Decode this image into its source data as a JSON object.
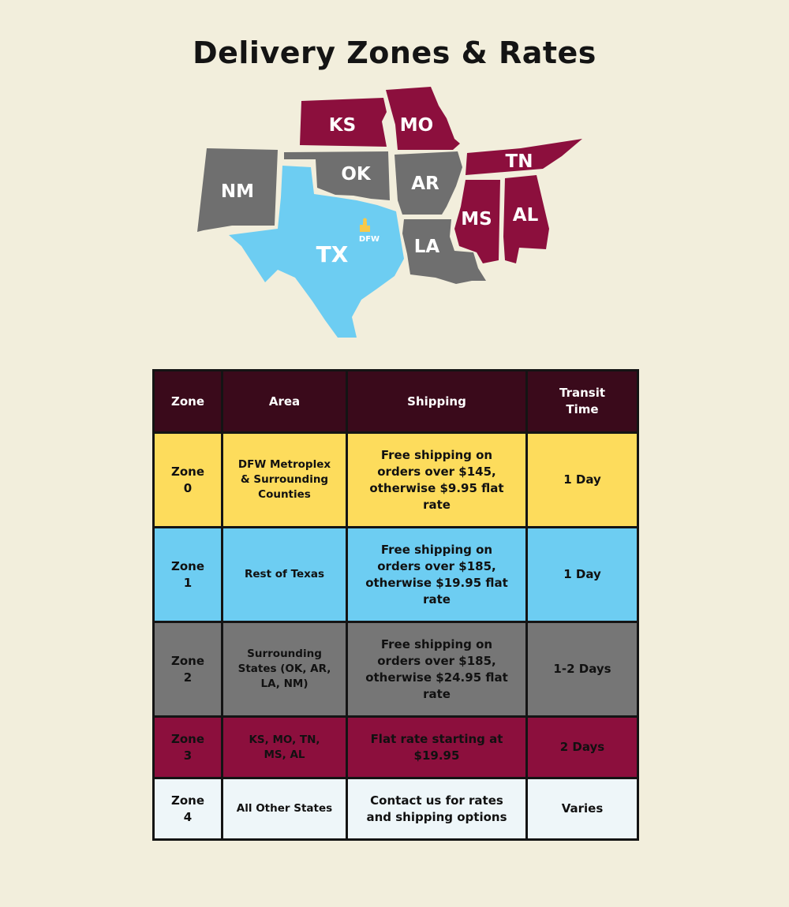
{
  "title": "Delivery Zones & Rates",
  "colors": {
    "background": "#f2eedc",
    "zone0": "#fddc5c",
    "zone1": "#6dcdf2",
    "zone2": "#767676",
    "zone3": "#8c0f3d",
    "zone4": "#eef6f9",
    "header": "#3a0a1b"
  },
  "map": {
    "states": [
      {
        "abbr": "KS",
        "zone": 3
      },
      {
        "abbr": "MO",
        "zone": 3
      },
      {
        "abbr": "NM",
        "zone": 2
      },
      {
        "abbr": "OK",
        "zone": 2
      },
      {
        "abbr": "AR",
        "zone": 2
      },
      {
        "abbr": "TN",
        "zone": 3
      },
      {
        "abbr": "MS",
        "zone": 3
      },
      {
        "abbr": "AL",
        "zone": 3
      },
      {
        "abbr": "TX",
        "zone": 1
      },
      {
        "abbr": "LA",
        "zone": 2
      }
    ],
    "marker": {
      "label": "DFW",
      "icon": "city-skyline-icon"
    }
  },
  "table": {
    "headers": [
      "Zone",
      "Area",
      "Shipping",
      "Transit Time"
    ],
    "rows": [
      {
        "zone": "Zone 0",
        "area": "DFW Metroplex & Surrounding Counties",
        "shipping": "Free shipping on orders over $145, otherwise $9.95 flat rate",
        "transit": "1 Day"
      },
      {
        "zone": "Zone 1",
        "area": "Rest of Texas",
        "shipping": "Free shipping on orders over $185, otherwise $19.95 flat rate",
        "transit": "1 Day"
      },
      {
        "zone": "Zone 2",
        "area": "Surrounding States (OK, AR, LA, NM)",
        "shipping": "Free shipping on orders over $185, otherwise $24.95 flat rate",
        "transit": "1-2 Days"
      },
      {
        "zone": "Zone 3",
        "area": "KS, MO, TN, MS, AL",
        "shipping": "Flat rate starting at $19.95",
        "transit": "2 Days"
      },
      {
        "zone": "Zone 4",
        "area": "All Other States",
        "shipping": "Contact us for rates and shipping options",
        "transit": "Varies"
      }
    ]
  }
}
